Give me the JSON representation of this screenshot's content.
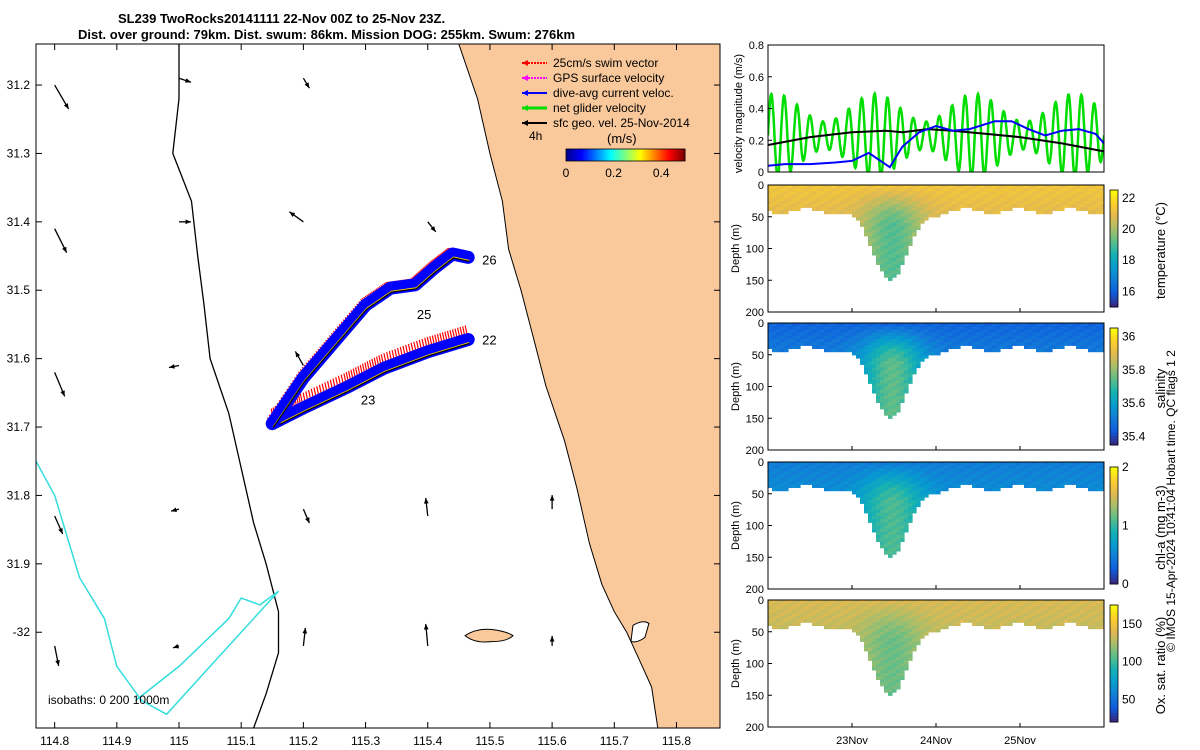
{
  "header": {
    "title_line1": "SL239 TwoRocks20141111 22-Nov 00Z to 25-Nov 23Z.",
    "title_line2": "Dist. over ground: 79km. Dist. swum: 86km. Mission DOG: 255km. Swum: 276km"
  },
  "credit": "© IMOS 15-Apr-2024 10:41:04 Hobart time. QC flags 1  2",
  "colors": {
    "land": "#f9c99c",
    "swim": "#ff0000",
    "gps": "#ff00ff",
    "dive_avg": "#0000ff",
    "net": "#00dd00",
    "geo": "#000000",
    "isobath_200": "#000000",
    "isobath_1000": "#33dddd"
  },
  "chart_data": [
    {
      "type": "map",
      "name": "glider track map",
      "xlim": [
        114.77,
        115.87
      ],
      "ylim": [
        -32.14,
        -31.14
      ],
      "xticks": [
        114.8,
        114.9,
        115,
        115.1,
        115.2,
        115.3,
        115.4,
        115.5,
        115.6,
        115.7,
        115.8
      ],
      "yticks": [
        -31.2,
        -31.3,
        -31.4,
        -31.5,
        -31.6,
        -31.7,
        -31.8,
        -31.9,
        -32
      ],
      "xtick_labels": [
        "114.8",
        "114.9",
        "115",
        "115.1",
        "115.2",
        "115.3",
        "115.4",
        "115.5",
        "115.6",
        "115.7",
        "115.8"
      ],
      "ytick_labels": [
        "31.2",
        "31.3",
        "31.4",
        "31.5",
        "31.6",
        "31.7",
        "31.8",
        "31.9",
        "-32"
      ],
      "legend": [
        {
          "label": "25cm/s swim vector",
          "color": "#ff0000"
        },
        {
          "label": "GPS surface velocity",
          "color": "#ff00ff"
        },
        {
          "label": "dive-avg current veloc.",
          "color": "#0000ff"
        },
        {
          "label": "net glider velocity",
          "color": "#00dd00"
        },
        {
          "label": "sfc geo. vel. 25-Nov-2014",
          "color": "#000000"
        }
      ],
      "legend_placement": "top-right",
      "colorbar": {
        "label": "(m/s)",
        "ticks": [
          "0",
          "0.2",
          "0.4"
        ],
        "range": [
          0,
          0.5
        ],
        "interval_label": "4h"
      },
      "isobath_label": "isobaths: 0   200  1000m",
      "track_labels": [
        "22",
        "23",
        "25",
        "26"
      ],
      "track": {
        "outbound": [
          [
            115.465,
            -31.572
          ],
          [
            115.4,
            -31.59
          ],
          [
            115.33,
            -31.614
          ],
          [
            115.27,
            -31.642
          ],
          [
            115.2,
            -31.672
          ],
          [
            115.15,
            -31.695
          ]
        ],
        "inbound": [
          [
            115.15,
            -31.695
          ],
          [
            115.2,
            -31.628
          ],
          [
            115.25,
            -31.575
          ],
          [
            115.3,
            -31.522
          ],
          [
            115.34,
            -31.497
          ],
          [
            115.38,
            -31.492
          ],
          [
            115.41,
            -31.468
          ],
          [
            115.44,
            -31.447
          ],
          [
            115.465,
            -31.452
          ]
        ],
        "day_marks": [
          {
            "label": "22",
            "lon": 115.465,
            "lat": -31.572
          },
          {
            "label": "23",
            "lon": 115.27,
            "lat": -31.66
          },
          {
            "label": "25",
            "lon": 115.36,
            "lat": -31.535
          },
          {
            "label": "26",
            "lon": 115.465,
            "lat": -31.455
          }
        ]
      },
      "geo_vectors": [
        {
          "lon": 114.8,
          "lat": -31.2,
          "u": 0.35,
          "v": -0.6
        },
        {
          "lon": 114.8,
          "lat": -31.41,
          "u": 0.3,
          "v": -0.6
        },
        {
          "lon": 114.8,
          "lat": -31.62,
          "u": 0.25,
          "v": -0.6
        },
        {
          "lon": 114.8,
          "lat": -31.83,
          "u": 0.2,
          "v": -0.45
        },
        {
          "lon": 114.8,
          "lat": -32.02,
          "u": 0.1,
          "v": -0.5
        },
        {
          "lon": 115.0,
          "lat": -31.19,
          "u": 0.3,
          "v": -0.1
        },
        {
          "lon": 115.0,
          "lat": -31.4,
          "u": 0.3,
          "v": 0.0
        },
        {
          "lon": 115.0,
          "lat": -31.61,
          "u": -0.25,
          "v": -0.05
        },
        {
          "lon": 115.0,
          "lat": -31.82,
          "u": -0.2,
          "v": -0.05
        },
        {
          "lon": 115.0,
          "lat": -32.02,
          "u": -0.15,
          "v": -0.05
        },
        {
          "lon": 115.2,
          "lat": -31.19,
          "u": 0.15,
          "v": -0.25
        },
        {
          "lon": 115.2,
          "lat": -31.4,
          "u": -0.35,
          "v": 0.25
        },
        {
          "lon": 115.2,
          "lat": -31.61,
          "u": -0.2,
          "v": 0.35
        },
        {
          "lon": 115.2,
          "lat": -31.82,
          "u": 0.15,
          "v": -0.35
        },
        {
          "lon": 115.2,
          "lat": -32.02,
          "u": 0.05,
          "v": 0.45
        },
        {
          "lon": 115.4,
          "lat": -31.4,
          "u": 0.2,
          "v": -0.25
        },
        {
          "lon": 115.4,
          "lat": -31.83,
          "u": -0.05,
          "v": 0.45
        },
        {
          "lon": 115.4,
          "lat": -32.02,
          "u": -0.05,
          "v": 0.55
        },
        {
          "lon": 115.6,
          "lat": -31.82,
          "u": 0.0,
          "v": 0.35
        },
        {
          "lon": 115.6,
          "lat": -32.02,
          "u": 0.0,
          "v": 0.25
        }
      ]
    },
    {
      "type": "line",
      "name": "velocity magnitude",
      "ylabel": "velocity magnitude (m/s)",
      "ylim": [
        0,
        0.8
      ],
      "yticks": [
        "0",
        "0.2",
        "0.4",
        "0.6",
        "0.8"
      ],
      "xlim": [
        0,
        4
      ],
      "series": [
        {
          "name": "net glider velocity",
          "color": "#00dd00",
          "base": 0.23,
          "amplitude": 0.22,
          "cycles_per_day": 6.5
        },
        {
          "name": "sfc geo. vel.",
          "color": "#000000",
          "x": [
            0,
            0.5,
            1.0,
            1.4,
            1.6,
            1.9,
            2.2,
            2.6,
            3.0,
            3.5,
            4.0
          ],
          "y": [
            0.17,
            0.22,
            0.25,
            0.26,
            0.25,
            0.27,
            0.26,
            0.24,
            0.22,
            0.18,
            0.13
          ]
        },
        {
          "name": "dive-avg current",
          "color": "#0000ff",
          "x": [
            0,
            0.2,
            0.5,
            0.8,
            1.0,
            1.2,
            1.45,
            1.6,
            1.8,
            2.0,
            2.2,
            2.4,
            2.7,
            2.9,
            3.1,
            3.3,
            3.5,
            3.7,
            3.9,
            4.0
          ],
          "y": [
            0.04,
            0.05,
            0.05,
            0.06,
            0.07,
            0.12,
            0.03,
            0.16,
            0.25,
            0.29,
            0.26,
            0.27,
            0.32,
            0.32,
            0.27,
            0.23,
            0.26,
            0.27,
            0.24,
            0.18
          ]
        }
      ]
    },
    {
      "type": "heatmap",
      "name": "temperature section",
      "ylabel": "Depth (m)",
      "yticks": [
        "0",
        "50",
        "100",
        "150",
        "200"
      ],
      "cbar_label": "temperature (°C)",
      "cbar_ticks": [
        "16",
        "18",
        "20",
        "22"
      ],
      "range": [
        15,
        22.5
      ],
      "surface_value": 21.3,
      "deep_value": 20.0,
      "anomaly_value": 19.5,
      "colormap": "parula"
    },
    {
      "type": "heatmap",
      "name": "salinity section",
      "ylabel": "Depth (m)",
      "yticks": [
        "0",
        "50",
        "100",
        "150",
        "200"
      ],
      "cbar_label": "salinity",
      "cbar_ticks": [
        "35.4",
        "35.6",
        "35.8",
        "36"
      ],
      "range": [
        35.35,
        36.05
      ],
      "surface_value": 35.45,
      "deep_value": 35.62,
      "anomaly_value": 35.7,
      "colormap": "parula"
    },
    {
      "type": "heatmap",
      "name": "chl-a section",
      "ylabel": "Depth (m)",
      "yticks": [
        "0",
        "50",
        "100",
        "150",
        "200"
      ],
      "cbar_label": "chl-a (mg m-3)",
      "cbar_ticks": [
        "0",
        "1",
        "2"
      ],
      "range": [
        0,
        2
      ],
      "surface_value": 0.45,
      "deep_value": 0.8,
      "anomaly_value": 1.0,
      "colormap": "parula"
    },
    {
      "type": "heatmap",
      "name": "oxygen saturation section",
      "ylabel": "Depth (m)",
      "yticks": [
        "0",
        "50",
        "100",
        "150",
        "200"
      ],
      "cbar_label": "Ox. sat. ratio (%)",
      "cbar_ticks": [
        "50",
        "100",
        "150"
      ],
      "range": [
        20,
        175
      ],
      "surface_value": 138,
      "deep_value": 120,
      "anomaly_value": 118,
      "colormap": "parula",
      "xtick_labels": [
        "23Nov",
        "24Nov",
        "25Nov"
      ],
      "xticks_days": [
        1,
        2,
        3
      ]
    }
  ]
}
